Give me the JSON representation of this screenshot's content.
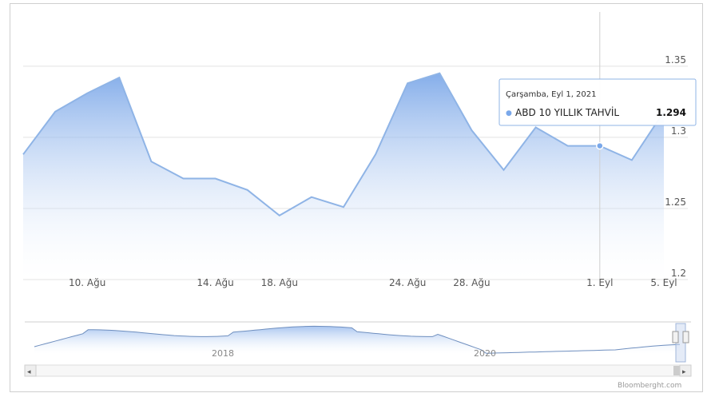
{
  "chart_data": {
    "type": "area",
    "x": [
      "Ağu 6",
      "Ağu 9",
      "Ağu 10",
      "Ağu 11",
      "Ağu 12",
      "Ağu 13",
      "Ağu 16",
      "Ağu 17",
      "Ağu 18",
      "Ağu 19",
      "Ağu 20",
      "Ağu 23",
      "Ağu 24",
      "Ağu 25",
      "Ağu 26",
      "Ağu 27",
      "Ağu 30",
      "Ağu 31",
      "Eyl 1",
      "Eyl 2",
      "Eyl 3"
    ],
    "series": [
      {
        "name": "ABD 10 YILLIK TAHVİL",
        "values": [
          1.288,
          1.318,
          1.331,
          1.342,
          1.283,
          1.271,
          1.271,
          1.263,
          1.245,
          1.258,
          1.251,
          1.288,
          1.338,
          1.345,
          1.305,
          1.277,
          1.307,
          1.294,
          1.294,
          1.284,
          1.318
        ]
      }
    ],
    "x_ticks": [
      "10. Ağu",
      "14. Ağu",
      "18. Ağu",
      "24. Ağu",
      "28. Ağu",
      "1. Eyl",
      "5. Eyl"
    ],
    "y_ticks": [
      "1.35",
      "1.3",
      "1.25",
      "1.2"
    ],
    "ylim": [
      1.2,
      1.36
    ],
    "grid": true,
    "tooltip": {
      "date": "Çarşamba, Eyl 1, 2021",
      "bullet": "●",
      "series": "ABD 10 YILLIK TAHVİL",
      "value": "1.294"
    },
    "navigator": {
      "labels": [
        "2018",
        "2020"
      ],
      "left_arrow": "◂",
      "right_arrow": "▸"
    },
    "credit": "Bloomberght.com",
    "colors": {
      "line": "#8fb4e6",
      "area_top": "#7aa8ea",
      "area_bottom": "#ffffff",
      "grid": "#e3e3e3"
    }
  }
}
